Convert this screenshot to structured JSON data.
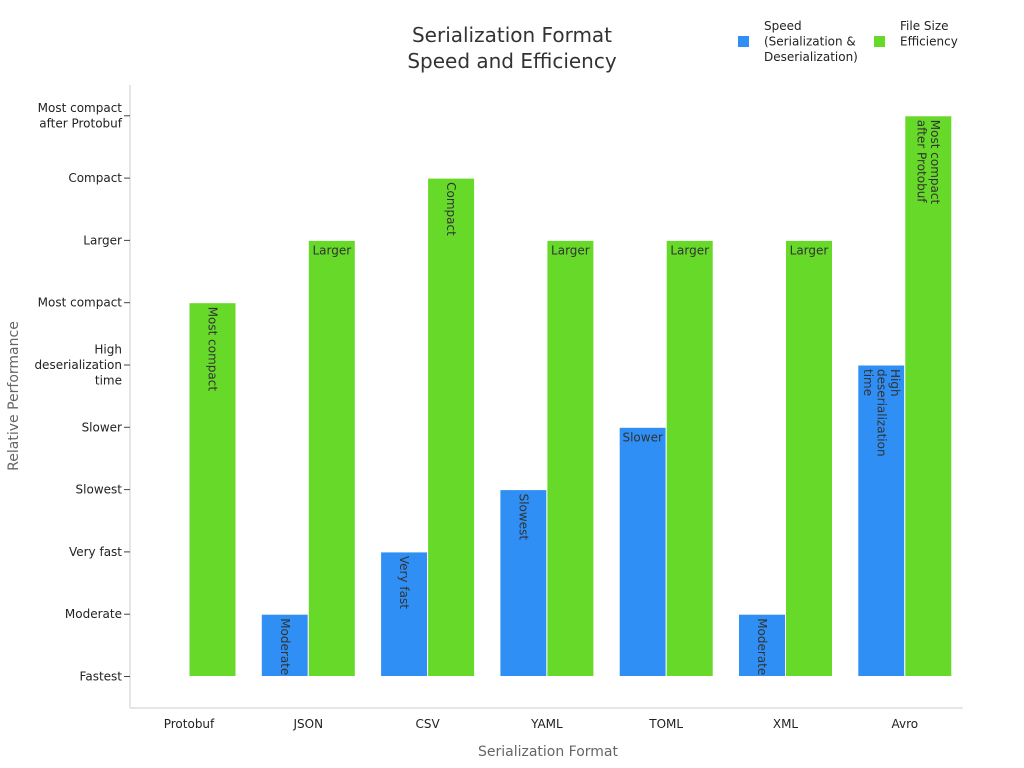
{
  "chart_data": {
    "type": "bar",
    "title": "Serialization Format Speed and Efficiency",
    "title_lines": [
      "Serialization Format",
      "Speed and Efficiency"
    ],
    "xlabel": "Serialization Format",
    "ylabel": "Relative Performance",
    "categories": [
      "Protobuf",
      "JSON",
      "CSV",
      "YAML",
      "TOML",
      "XML",
      "Avro"
    ],
    "y_ticks": [
      {
        "value": 0,
        "label": "Fastest"
      },
      {
        "value": 1,
        "label": "Moderate"
      },
      {
        "value": 2,
        "label": "Very fast"
      },
      {
        "value": 3,
        "label": "Slowest"
      },
      {
        "value": 4,
        "label": "Slower"
      },
      {
        "value": 5,
        "label": "High deserialization time"
      },
      {
        "value": 6,
        "label": "Most compact"
      },
      {
        "value": 7,
        "label": "Larger"
      },
      {
        "value": 8,
        "label": "Compact"
      },
      {
        "value": 9,
        "label": "Most compact after Protobuf"
      }
    ],
    "ylim": [
      -0.5,
      9.6
    ],
    "grid": false,
    "legend_position": "top-right",
    "series": [
      {
        "name": "Speed (Serialization & Deserialization)",
        "color": "#2f8ff5",
        "values": [
          0,
          1,
          2,
          3,
          4,
          5,
          1
        ],
        "labels": [
          "Fastest",
          "Moderate",
          "Very fast",
          "Slowest",
          "Slower",
          "High deserialization time",
          "Moderate"
        ],
        "label_orientation": [
          "none",
          "vertical",
          "vertical",
          "vertical",
          "horizontal",
          "vertical",
          "vertical"
        ]
      },
      {
        "name": "File Size Efficiency",
        "color": "#66d929",
        "values": [
          6,
          7,
          8,
          7,
          7,
          7,
          9
        ],
        "labels": [
          "Most compact",
          "Larger",
          "Compact",
          "Larger",
          "Larger",
          "Larger",
          "Most compact after Protobuf"
        ],
        "label_orientation": [
          "vertical",
          "horizontal",
          "vertical",
          "horizontal",
          "horizontal",
          "horizontal",
          "vertical"
        ]
      }
    ],
    "speed_values_in_category_order_note": ""
  }
}
